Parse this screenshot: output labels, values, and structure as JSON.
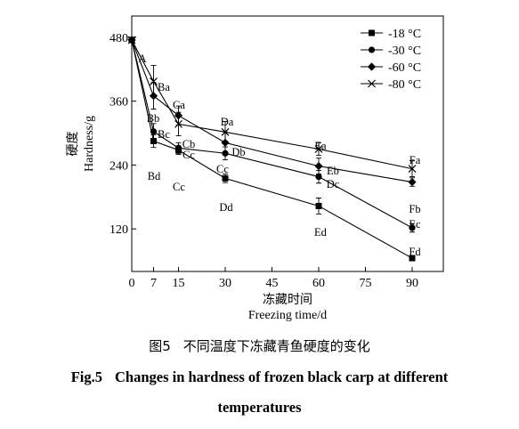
{
  "caption": {
    "cn_label": "图5",
    "cn_text": "不同温度下冻藏青鱼硬度的变化",
    "en_label": "Fig.5",
    "en_text_line1": "Changes in hardness of frozen black carp at different",
    "en_text_line2": "temperatures"
  },
  "chart_data": {
    "type": "line",
    "xlabel_cn": "冻藏时间",
    "xlabel": "Freezing time/d",
    "ylabel_cn": "硬度",
    "ylabel": "Hardness/g",
    "xlim": [
      0,
      100
    ],
    "ylim": [
      40,
      520
    ],
    "xticks": [
      0,
      7,
      15,
      30,
      45,
      60,
      75,
      90
    ],
    "yticks": [
      120,
      240,
      360,
      480
    ],
    "x": [
      0,
      7,
      15,
      30,
      60,
      90
    ],
    "legend_position": "top-right",
    "grid": false,
    "series": [
      {
        "name": "-18 °C",
        "marker": "square",
        "values": [
          475,
          285,
          268,
          215,
          163,
          65
        ],
        "errors": [
          5,
          12,
          8,
          8,
          15,
          5
        ],
        "labels": [
          "",
          "Bd",
          "Cc",
          "Dd",
          "Ed",
          "Fd"
        ]
      },
      {
        "name": "-30 °C",
        "marker": "circle",
        "values": [
          475,
          303,
          272,
          262,
          218,
          122
        ],
        "errors": [
          5,
          15,
          10,
          12,
          12,
          8
        ],
        "labels": [
          "",
          "Bc",
          "Cc",
          "Cc",
          "Dc",
          "Ec"
        ]
      },
      {
        "name": "-60 °C",
        "marker": "diamond",
        "values": [
          475,
          370,
          333,
          282,
          238,
          208
        ],
        "errors": [
          5,
          25,
          18,
          20,
          15,
          8
        ],
        "labels": [
          "",
          "Bb",
          "Cb",
          "Db",
          "Eb",
          "Fb"
        ]
      },
      {
        "name": "-80 °C",
        "marker": "x",
        "values": [
          475,
          397,
          317,
          302,
          270,
          233
        ],
        "errors": [
          5,
          30,
          22,
          20,
          12,
          15
        ],
        "labels": [
          "A",
          "Ba",
          "Ca",
          "Da",
          "Ea",
          "Fa"
        ]
      }
    ]
  }
}
